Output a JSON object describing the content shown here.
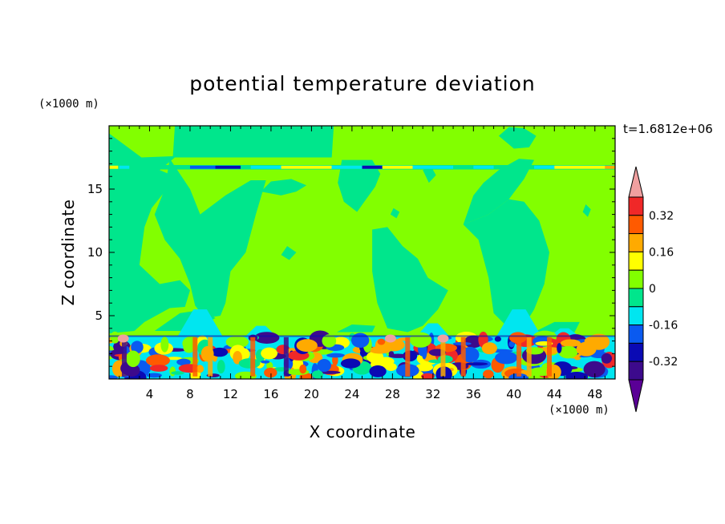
{
  "chart_data": {
    "type": "heatmap",
    "title": "potential temperature deviation",
    "xlabel": "X coordinate",
    "ylabel": "Z coordinate",
    "x_unit": "(×1000 m)",
    "y_unit": "(×1000 m)",
    "time_label": "t=1.6812e+06",
    "xlim": [
      0,
      50
    ],
    "ylim": [
      0,
      20
    ],
    "x_ticks": [
      4,
      8,
      12,
      16,
      20,
      24,
      28,
      32,
      36,
      40,
      44,
      48
    ],
    "y_ticks": [
      5,
      10,
      15
    ],
    "grid": false,
    "legend": "colorbar-right",
    "colorbar": {
      "levels": [
        -0.4,
        -0.32,
        -0.24,
        -0.16,
        -0.08,
        0,
        0.08,
        0.16,
        0.24,
        0.32,
        0.4
      ],
      "labeled": [
        "0.32",
        "0.16",
        "0",
        "-0.16",
        "-0.32"
      ],
      "colors": [
        "#5a0096",
        "#3c0a8c",
        "#0a0ab4",
        "#0a5af0",
        "#00e6f0",
        "#00e68c",
        "#82ff00",
        "#ffff00",
        "#ffaa00",
        "#ff5a00",
        "#f02828",
        "#f0a0a0"
      ],
      "extend": "both"
    },
    "field": {
      "background_class": 0,
      "regions": [
        {
          "level": -0.08,
          "description": "upper-level negative columns",
          "centers_x": [
            6,
            22,
            30,
            41
          ]
        },
        {
          "level": -0.16,
          "description": "tropopause thin band",
          "z": 16.8
        },
        {
          "level": 0.16,
          "description": "tropopause warm streak",
          "z": 16.7
        },
        {
          "level": -0.24,
          "description": "boundary-layer cold pockets",
          "z_max": 3.5
        },
        {
          "level": 0.24,
          "description": "boundary-layer warm pockets",
          "z_max": 3.5
        }
      ]
    }
  }
}
